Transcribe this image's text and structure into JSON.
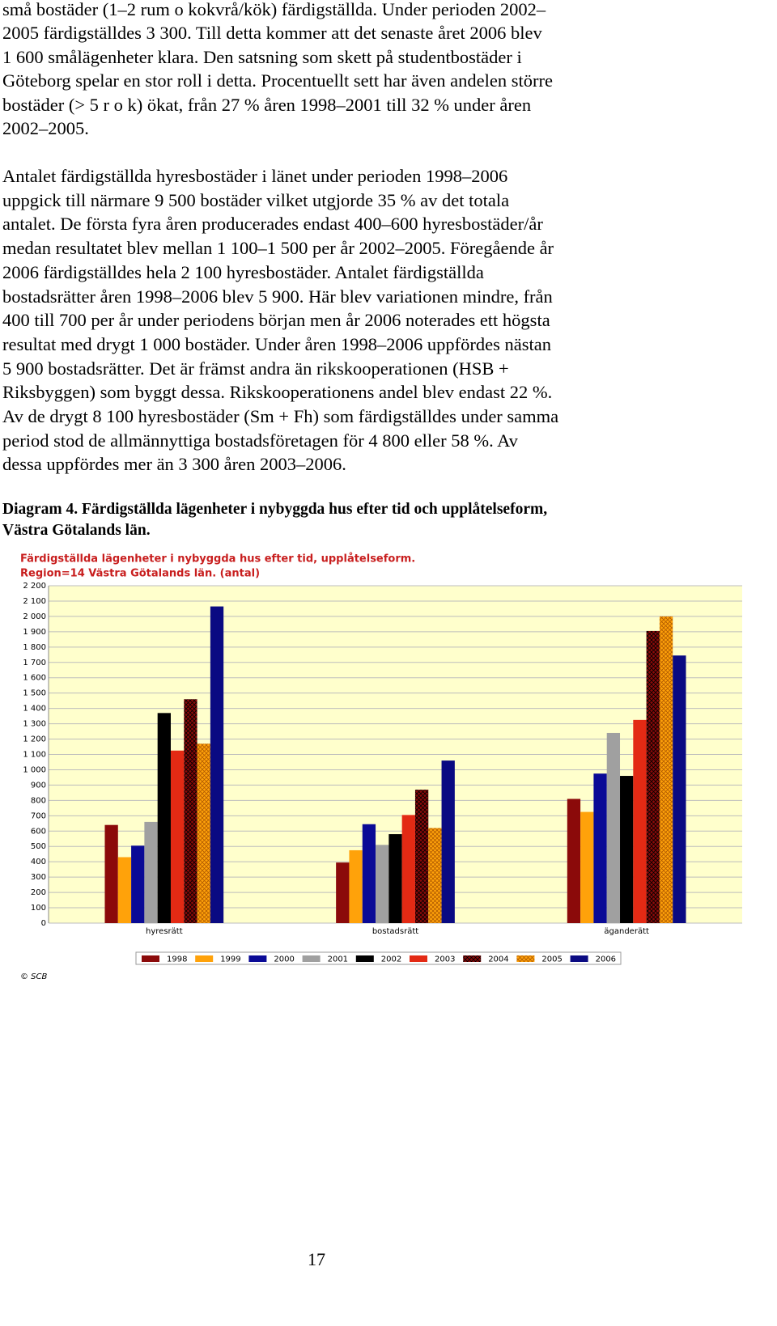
{
  "paragraphs": [
    [
      "små bostäder (1–2 rum o kokvrå/kök) färdigställda. Under perioden 2002–",
      "2005 färdigställdes 3 300. Till detta kommer att det senaste året 2006 blev",
      "1 600 smålägenheter klara. Den satsning som skett på studentbostäder i",
      "Göteborg spelar en stor roll i detta. Procentuellt sett har även andelen större",
      "bostäder (> 5 r o k) ökat, från 27 % åren 1998–2001 till 32 % under åren",
      "2002–2005."
    ],
    [
      "Antalet färdigställda hyresbostäder i länet under perioden 1998–2006",
      "uppgick till närmare 9 500 bostäder vilket utgjorde 35 % av det totala",
      "antalet. De första fyra åren producerades endast 400–600 hyresbostäder/år",
      "medan resultatet blev mellan 1 100–1 500 per år 2002–2005. Föregående år",
      "2006 färdigställdes hela 2 100 hyresbostäder. Antalet färdigställda",
      "bostadsrätter åren 1998–2006 blev 5 900. Här blev variationen mindre, från",
      "400 till 700 per år under periodens början men år 2006 noterades ett högsta",
      "resultat med drygt 1 000 bostäder. Under åren 1998–2006 uppfördes nästan",
      "5 900 bostadsrätter. Det är främst andra än rikskooperationen (HSB +",
      "Riksbyggen) som byggt dessa. Rikskooperationens andel blev endast 22 %.",
      "Av de drygt 8 100 hyresbostäder (Sm + Fh) som färdigställdes under samma",
      "period stod de allmännyttiga bostadsföretagen för 4 800 eller 58 %. Av",
      "dessa uppfördes mer än 3 300 åren 2003–2006."
    ]
  ],
  "caption": [
    "Diagram 4. Färdigställda lägenheter i nybyggda hus efter tid och upplåtelseform,",
    "Västra Götalands län."
  ],
  "chart_data": {
    "type": "bar",
    "title": "Färdigställda lägenheter i nybyggda hus efter tid, upplåtelseform.",
    "subtitle": "Region=14 Västra Götalands län. (antal)",
    "categories": [
      "hyresrätt",
      "bostadsrätt",
      "äganderätt"
    ],
    "series": [
      {
        "name": "1998",
        "color": "#8b0a0a",
        "values": [
          640,
          395,
          810
        ]
      },
      {
        "name": "1999",
        "color": "#ffa20a",
        "values": [
          430,
          475,
          725
        ]
      },
      {
        "name": "2000",
        "color": "#0a0a96",
        "values": [
          505,
          645,
          975
        ]
      },
      {
        "name": "2001",
        "color": "#a0a0a0",
        "values": [
          660,
          510,
          1240
        ]
      },
      {
        "name": "2002",
        "color": "#000000",
        "values": [
          1370,
          580,
          960
        ]
      },
      {
        "name": "2003",
        "color": "#e32a14",
        "values": [
          1125,
          705,
          1325
        ]
      },
      {
        "name": "2004",
        "color": "#8b0a0a",
        "hatched": true,
        "values": [
          1460,
          870,
          1905
        ]
      },
      {
        "name": "2005",
        "color": "#ffa20a",
        "hatched": true,
        "values": [
          1170,
          620,
          2000
        ]
      },
      {
        "name": "2006",
        "color": "#0a0a82",
        "values": [
          2065,
          1060,
          1745
        ]
      }
    ],
    "ylim": [
      0,
      2200
    ],
    "yticks": [
      0,
      100,
      200,
      300,
      400,
      500,
      600,
      700,
      800,
      900,
      {
        "value": 1000,
        "label": "1 000"
      },
      {
        "value": 1100,
        "label": "1 100"
      },
      {
        "value": 1200,
        "label": "1 200"
      },
      {
        "value": 1300,
        "label": "1 300"
      },
      {
        "value": 1400,
        "label": "1 400"
      },
      {
        "value": 1500,
        "label": "1 500"
      },
      {
        "value": 1600,
        "label": "1 600"
      },
      {
        "value": 1700,
        "label": "1 700"
      },
      {
        "value": 1800,
        "label": "1 800"
      },
      {
        "value": 1900,
        "label": "1 900"
      },
      {
        "value": 2000,
        "label": "2 000"
      },
      {
        "value": 2100,
        "label": "2 100"
      },
      {
        "value": 2200,
        "label": "2 200"
      }
    ],
    "grid": true,
    "legend": "bottom",
    "source": "© SCB"
  },
  "page_number": "17"
}
